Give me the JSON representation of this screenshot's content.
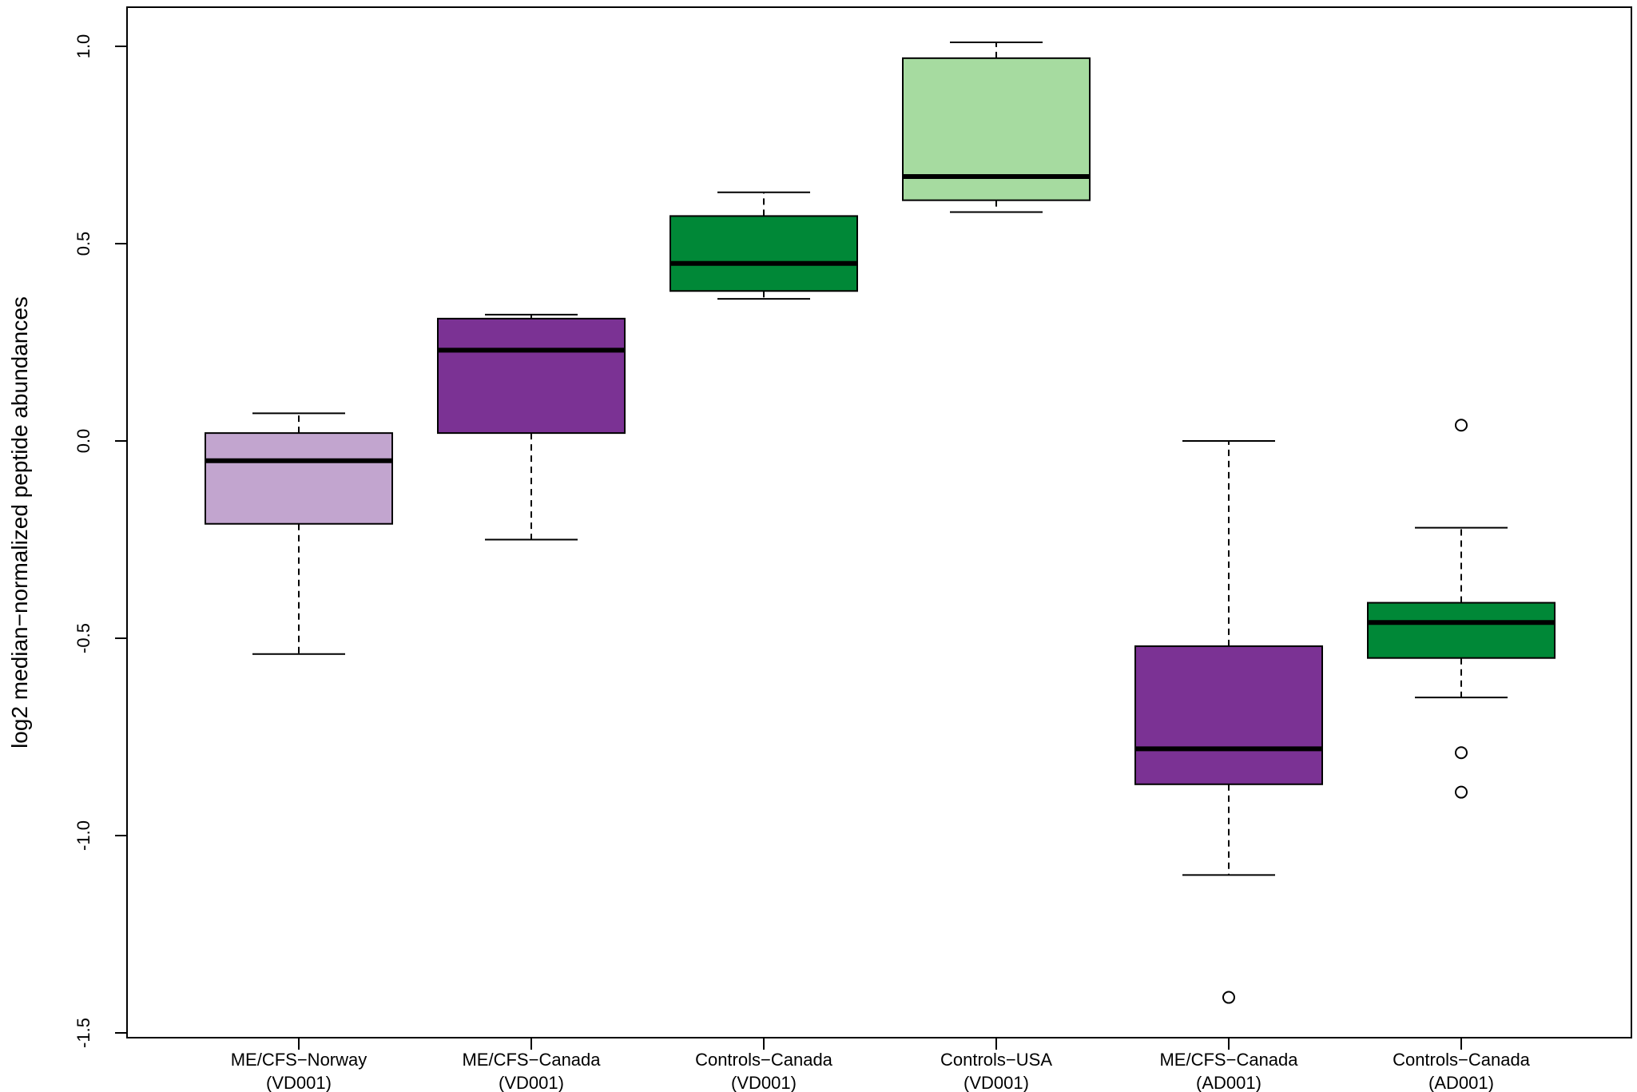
{
  "chart_data": {
    "type": "boxplot",
    "title": "",
    "xlabel": "",
    "ylabel": "log2 median−normalized peptide abundances",
    "ylim": [
      -1.5,
      1.1
    ],
    "y_ticks": [
      "-1.5",
      "-1.0",
      "-0.5",
      "0.0",
      "0.5",
      "1.0"
    ],
    "y_tick_values": [
      -1.5,
      -1.0,
      -0.5,
      0.0,
      0.5,
      1.0
    ],
    "grid": false,
    "legend": "none",
    "series": [
      {
        "line1": "ME/CFS−Norway",
        "line2": "(VD001)",
        "color": "#c2a5cf",
        "whisker_low": -0.54,
        "q1": -0.21,
        "median": -0.05,
        "q3": 0.02,
        "whisker_high": 0.07,
        "outliers": []
      },
      {
        "line1": "ME/CFS−Canada",
        "line2": "(VD001)",
        "color": "#7b3294",
        "whisker_low": -0.25,
        "q1": 0.02,
        "median": 0.23,
        "q3": 0.31,
        "whisker_high": 0.32,
        "outliers": []
      },
      {
        "line1": "Controls−Canada",
        "line2": "(VD001)",
        "color": "#008837",
        "whisker_low": 0.36,
        "q1": 0.38,
        "median": 0.45,
        "q3": 0.57,
        "whisker_high": 0.63,
        "outliers": []
      },
      {
        "line1": "Controls−USA",
        "line2": "(VD001)",
        "color": "#a6dba0",
        "whisker_low": 0.58,
        "q1": 0.61,
        "median": 0.67,
        "q3": 0.97,
        "whisker_high": 1.01,
        "outliers": []
      },
      {
        "line1": "ME/CFS−Canada",
        "line2": "(AD001)",
        "color": "#7b3294",
        "whisker_low": -1.1,
        "q1": -0.87,
        "median": -0.78,
        "q3": -0.52,
        "whisker_high": 0.0,
        "outliers": [
          -1.41
        ]
      },
      {
        "line1": "Controls−Canada",
        "line2": "(AD001)",
        "color": "#008837",
        "whisker_low": -0.65,
        "q1": -0.55,
        "median": -0.46,
        "q3": -0.41,
        "whisker_high": -0.22,
        "outliers": [
          0.04,
          -0.79,
          -0.89
        ]
      }
    ]
  }
}
